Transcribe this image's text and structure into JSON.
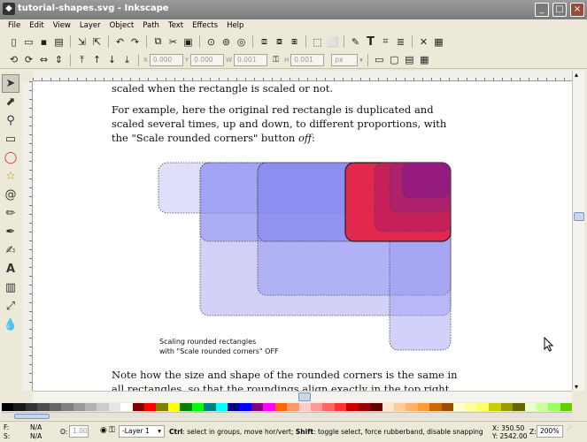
{
  "window": {
    "title": "tutorial-shapes.svg - Inkscape",
    "buttons": {
      "minimize": "_",
      "maximize": "□",
      "close": "×"
    }
  },
  "menu": [
    "File",
    "Edit",
    "View",
    "Layer",
    "Object",
    "Path",
    "Text",
    "Effects",
    "Help"
  ],
  "controls": {
    "x_label": "X",
    "x_value": "0.000",
    "y_label": "Y",
    "y_value": "0.000",
    "w_label": "W",
    "w_value": "0.001",
    "h_label": "H",
    "h_value": "0.001",
    "unit": "px"
  },
  "document": {
    "line1": "scaled when the rectangle is scaled or not.",
    "line2": "For example, here the original red rectangle is duplicated and",
    "line3": "scaled several times, up and down, to different proportions, with",
    "line4_prefix": "the \"Scale rounded corners\" button ",
    "line4_italic": "off",
    "line4_suffix": ":",
    "caption1": "Scaling rounded rectangles",
    "caption2": "with \"Scale rounded corners\" OFF",
    "line5": "Note how the size and shape of the rounded corners is the same in",
    "line6": "all rectangles, so that the roundings align exactly in the top right"
  },
  "status": {
    "fill_label": "F:",
    "fill_value": "N/A",
    "stroke_label": "S:",
    "stroke_value": "N/A",
    "opacity_label": "O:",
    "opacity_value": "1.00",
    "layer": "-Layer 1",
    "hint_ctrl": "Ctrl",
    "hint_1": ": select in groups, move hor/vert; ",
    "hint_shift": "Shift",
    "hint_2": ": toggle select, force rubberband, disable snapping",
    "x_coord": "X: 350.50",
    "y_coord": "Y: 2542.00",
    "zoom_label": "Z:",
    "zoom_value": "200%"
  },
  "colors": {
    "palette": [
      "#000000",
      "#1a1a1a",
      "#333333",
      "#4d4d4d",
      "#666666",
      "#808080",
      "#999999",
      "#b3b3b3",
      "#cccccc",
      "#e6e6e6",
      "#ffffff",
      "#800000",
      "#ff0000",
      "#808000",
      "#ffff00",
      "#008000",
      "#00ff00",
      "#008080",
      "#00ffff",
      "#000080",
      "#0000ff",
      "#800080",
      "#ff00ff",
      "#ff6600",
      "#ff9966",
      "#ffcccc",
      "#ff9999",
      "#ff6666",
      "#ff3333",
      "#cc0000",
      "#990000",
      "#660000",
      "#ffe6cc",
      "#ffcc99",
      "#ffb366",
      "#ff9933",
      "#cc6600",
      "#994d00",
      "#ffffcc",
      "#ffff99",
      "#ffff66",
      "#cccc00",
      "#999900",
      "#666600",
      "#e6ffcc",
      "#ccff99",
      "#99ff66",
      "#66cc00"
    ]
  }
}
